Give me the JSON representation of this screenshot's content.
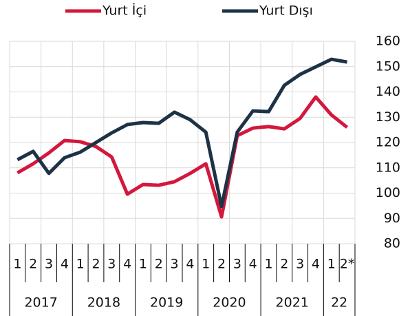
{
  "chart_data": {
    "type": "line",
    "categories": [
      "1",
      "2",
      "3",
      "4",
      "1",
      "2",
      "3",
      "4",
      "1",
      "2",
      "3",
      "4",
      "1",
      "2",
      "3",
      "4",
      "1",
      "2",
      "3",
      "4",
      "1",
      "2*"
    ],
    "years": [
      "2017",
      "2018",
      "2019",
      "2020",
      "2021",
      "22"
    ],
    "series": [
      {
        "name": "Yurt İçi",
        "color": "#d3173d",
        "values": [
          108.0,
          111.6,
          115.9,
          120.8,
          120.3,
          118.4,
          114.3,
          99.6,
          103.4,
          103.1,
          104.5,
          107.8,
          111.6,
          90.6,
          122.7,
          125.7,
          126.3,
          125.4,
          129.5,
          138.0,
          130.9,
          126.0
        ]
      },
      {
        "name": "Yurt Dışı",
        "color": "#1e3246",
        "values": [
          113.2,
          116.5,
          107.8,
          114.0,
          116.2,
          120.0,
          123.8,
          127.1,
          127.9,
          127.6,
          132.0,
          129.0,
          124.1,
          94.7,
          124.1,
          132.5,
          132.2,
          142.6,
          146.9,
          149.9,
          152.9,
          151.8
        ]
      }
    ],
    "ylim": [
      80,
      160
    ],
    "yticks": [
      80,
      90,
      100,
      110,
      120,
      130,
      140,
      150,
      160
    ],
    "grid": true,
    "legend": "top"
  }
}
